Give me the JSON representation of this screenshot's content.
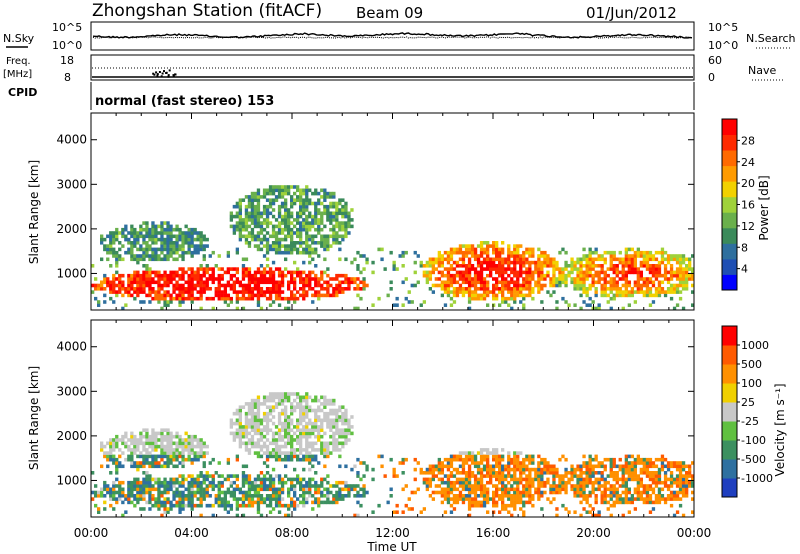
{
  "header": {
    "station_title": "Zhongshan Station (fitACF)",
    "beam": "Beam 09",
    "date": "01/Jun/2012"
  },
  "noise_panel": {
    "left_label": "N.Sky",
    "left_ticks": [
      "10^5",
      "10^0"
    ],
    "right_ticks": [
      "10^5",
      "10^0"
    ],
    "right_label": "N.Search"
  },
  "freq_panel": {
    "left_label_1": "Freq.",
    "left_label_2": "[MHz]",
    "left_ticks": [
      "18",
      "8"
    ],
    "right_ticks": [
      "60",
      "0"
    ],
    "right_label": "Nave"
  },
  "cpid_panel": {
    "left_label": "CPID",
    "mode_text": "normal (fast stereo) 153"
  },
  "x_axis": {
    "ticks": [
      "00:00",
      "04:00",
      "08:00",
      "12:00",
      "16:00",
      "20:00",
      "00:00"
    ],
    "label": "Time UT"
  },
  "colors": {
    "power": [
      "#0000ff",
      "#1f4fb4",
      "#2e6f9e",
      "#3a8a5a",
      "#6ab04c",
      "#9fd23a",
      "#f2d100",
      "#ff9b00",
      "#ff6a00",
      "#ff2a00",
      "#ff0000"
    ],
    "velocity": [
      "#1f3fbf",
      "#2e70a0",
      "#3c9060",
      "#60c040",
      "#c8c8c8",
      "#f0d000",
      "#ff9000",
      "#ff5a00",
      "#ff0000"
    ]
  },
  "chart_data": [
    {
      "type": "heatmap",
      "panel": "power",
      "ylabel": "Slant Range [km]",
      "yticks": [
        "1000",
        "2000",
        "3000",
        "4000"
      ],
      "ylim": [
        180,
        4600
      ],
      "xlim": [
        0,
        24
      ],
      "colorbar": {
        "label": "Power [dB]",
        "ticks": [
          "28",
          "24",
          "20",
          "16",
          "12",
          "8",
          "4"
        ],
        "range": [
          0,
          30
        ]
      },
      "description_zones": [
        {
          "t": [
            0.5,
            11.5
          ],
          "r": [
            500,
            1100
          ],
          "level": "high"
        },
        {
          "t": [
            6,
            10
          ],
          "r": [
            1400,
            3000
          ],
          "level": "low"
        },
        {
          "t": [
            14,
            18.5
          ],
          "r": [
            600,
            1700
          ],
          "level": "high"
        },
        {
          "t": [
            18.5,
            24
          ],
          "r": [
            500,
            1500
          ],
          "level": "medium"
        }
      ]
    },
    {
      "type": "heatmap",
      "panel": "velocity",
      "ylabel": "Slant Range [km]",
      "yticks": [
        "1000",
        "2000",
        "3000",
        "4000"
      ],
      "ylim": [
        180,
        4600
      ],
      "xlim": [
        0,
        24
      ],
      "colorbar": {
        "label": "Velocity [m s⁻¹]",
        "ticks": [
          "1000",
          "500",
          "100",
          "25",
          "-25",
          "-100",
          "-500",
          "-1000"
        ],
        "range": [
          -1200,
          1200
        ]
      }
    }
  ]
}
